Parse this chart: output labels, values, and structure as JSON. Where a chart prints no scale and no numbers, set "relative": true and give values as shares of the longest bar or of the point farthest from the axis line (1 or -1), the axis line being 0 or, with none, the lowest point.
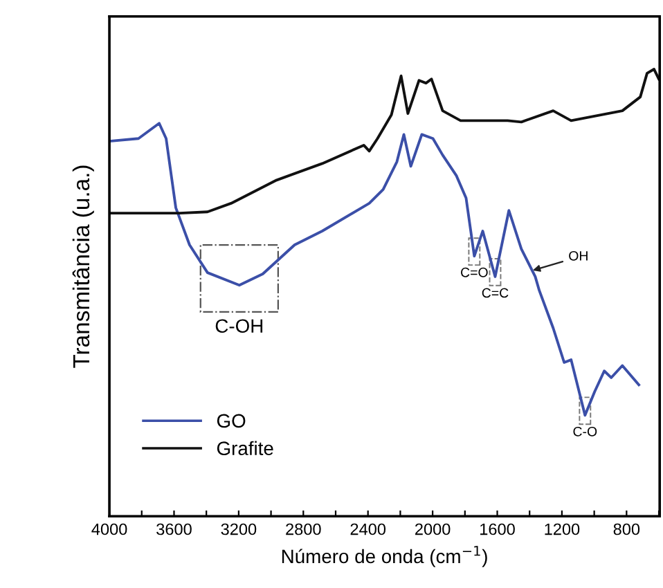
{
  "chart_data": {
    "type": "line",
    "relative": true,
    "xlabel": "Número de onda (cm$^{−1}$)",
    "ylabel": "Transmitância (u.a.)",
    "xlim": [
      4000,
      595
    ],
    "xticks": [
      4000,
      {
        "value": 3800,
        "label": null
      },
      3600,
      {
        "value": 3400,
        "label": null
      },
      3200,
      {
        "value": 3000,
        "label": null
      },
      2800,
      {
        "value": 2600,
        "label": null
      },
      2400,
      {
        "value": 2200,
        "label": null
      },
      2000,
      {
        "value": 1800,
        "label": null
      },
      1600,
      {
        "value": 1400,
        "label": null
      },
      1200,
      {
        "value": 1000,
        "label": null
      },
      800,
      {
        "value": 600,
        "label": null
      }
    ],
    "grid": false,
    "legend": "bottom left",
    "line_style": "solid",
    "marker": "none",
    "series": [
      {
        "name": "GO",
        "color": "#3b4fa8",
        "x": [
          4000,
          3820,
          3692,
          3649,
          3589,
          3504,
          3393,
          3196,
          3051,
          2854,
          2683,
          2392,
          2306,
          2221,
          2178,
          2135,
          2067,
          1998,
          1938,
          1853,
          1793,
          1742,
          1690,
          1613,
          1528,
          1451,
          1365,
          1340,
          1254,
          1186,
          1143,
          1057,
          997,
          938,
          895,
          826,
          724
        ],
        "values": [
          0.839,
          0.845,
          0.879,
          0.845,
          0.69,
          0.607,
          0.545,
          0.517,
          0.542,
          0.607,
          0.638,
          0.7,
          0.731,
          0.793,
          0.854,
          0.783,
          0.854,
          0.845,
          0.808,
          0.762,
          0.712,
          0.582,
          0.638,
          0.536,
          0.684,
          0.598,
          0.536,
          0.505,
          0.421,
          0.344,
          0.35,
          0.226,
          0.279,
          0.325,
          0.31,
          0.337,
          0.294
        ]
      },
      {
        "name": "Grafite",
        "color": "#111111",
        "x": [
          4000,
          3564,
          3393,
          3247,
          2965,
          2683,
          2426,
          2392,
          2341,
          2255,
          2195,
          2153,
          2084,
          2041,
          2007,
          1938,
          1827,
          1536,
          1451,
          1254,
          1143,
          826,
          715,
          673,
          630,
          600
        ],
        "values": [
          0.678,
          0.678,
          0.681,
          0.7,
          0.752,
          0.789,
          0.83,
          0.817,
          0.845,
          0.898,
          0.985,
          0.901,
          0.975,
          0.969,
          0.978,
          0.907,
          0.885,
          0.885,
          0.882,
          0.907,
          0.885,
          0.907,
          0.938,
          0.991,
          1.0,
          0.978
        ]
      }
    ],
    "annotations": [
      {
        "text": "C-OH",
        "x": 3196,
        "y": 0.517
      },
      {
        "text": "C=O",
        "x": 1742,
        "y": 0.582
      },
      {
        "text": "C=C",
        "x": 1613,
        "y": 0.536
      },
      {
        "text": "OH",
        "x": 1380,
        "y": 0.55
      },
      {
        "text": "C-O",
        "x": 1057,
        "y": 0.226
      }
    ]
  }
}
